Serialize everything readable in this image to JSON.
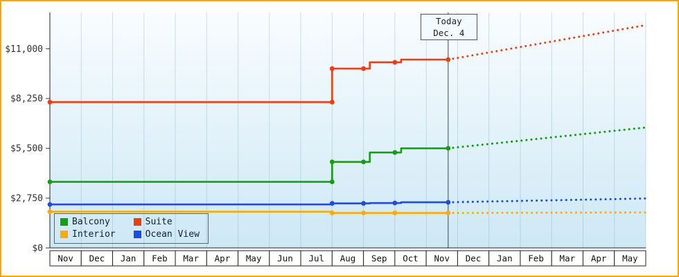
{
  "frame": {
    "border_color": "#ffa500"
  },
  "chart_data": {
    "type": "line",
    "title": "",
    "ylim": [
      0,
      13000
    ],
    "grid": "vertical-month-lines",
    "legend_position": "bottom-left",
    "y_axis": {
      "ticks": [
        {
          "label": "$0",
          "value": 0
        },
        {
          "label": "$2,750",
          "value": 2750
        },
        {
          "label": "$5,500",
          "value": 5500
        },
        {
          "label": "$8,250",
          "value": 8250
        },
        {
          "label": "$11,000",
          "value": 11000
        }
      ]
    },
    "x_axis": {
      "months": [
        "Nov",
        "Dec",
        "Jan",
        "Feb",
        "Mar",
        "Apr",
        "May",
        "Jun",
        "Jul",
        "Aug",
        "Sep",
        "Oct",
        "Nov",
        "Dec",
        "Jan",
        "Feb",
        "Mar",
        "Apr",
        "May"
      ]
    },
    "today": {
      "line1": "Today",
      "line2": "Dec. 4",
      "month_x": 12.7
    },
    "series": [
      {
        "name": "Interior",
        "color": "#ffaa00",
        "points": [
          [
            0,
            2000
          ],
          [
            9,
            2000
          ],
          [
            9,
            1930
          ],
          [
            12.7,
            1930
          ]
        ],
        "dots": [
          [
            0,
            2000
          ],
          [
            9,
            1930
          ],
          [
            10,
            1930
          ],
          [
            11,
            1930
          ],
          [
            12.7,
            1930
          ]
        ],
        "forecast": [
          [
            12.7,
            1930
          ],
          [
            19,
            1960
          ]
        ]
      },
      {
        "name": "Ocean View",
        "color": "#1e4be4",
        "points": [
          [
            0,
            2400
          ],
          [
            9,
            2400
          ],
          [
            9,
            2460
          ],
          [
            10.2,
            2460
          ],
          [
            10.2,
            2480
          ],
          [
            11.2,
            2480
          ],
          [
            11.2,
            2520
          ],
          [
            12.7,
            2520
          ]
        ],
        "dots": [
          [
            0,
            2400
          ],
          [
            9,
            2460
          ],
          [
            10,
            2460
          ],
          [
            11,
            2480
          ],
          [
            12.7,
            2520
          ]
        ],
        "forecast": [
          [
            12.7,
            2520
          ],
          [
            19,
            2730
          ]
        ]
      },
      {
        "name": "Balcony",
        "color": "#149e14",
        "points": [
          [
            0,
            3650
          ],
          [
            9,
            3650
          ],
          [
            9,
            4750
          ],
          [
            10.2,
            4750
          ],
          [
            10.2,
            5270
          ],
          [
            11.2,
            5270
          ],
          [
            11.2,
            5500
          ],
          [
            12.7,
            5500
          ]
        ],
        "dots": [
          [
            0,
            3650
          ],
          [
            9,
            3650
          ],
          [
            9,
            4750
          ],
          [
            10,
            4750
          ],
          [
            11,
            5270
          ],
          [
            12.7,
            5500
          ]
        ],
        "forecast": [
          [
            12.7,
            5500
          ],
          [
            19,
            6650
          ]
        ]
      },
      {
        "name": "Suite",
        "color": "#f23c0f",
        "points": [
          [
            0,
            8050
          ],
          [
            9,
            8050
          ],
          [
            9,
            9900
          ],
          [
            10.2,
            9900
          ],
          [
            10.2,
            10250
          ],
          [
            11.2,
            10250
          ],
          [
            11.2,
            10400
          ],
          [
            12.7,
            10400
          ]
        ],
        "dots": [
          [
            0,
            8050
          ],
          [
            9,
            8050
          ],
          [
            9,
            9900
          ],
          [
            10,
            9900
          ],
          [
            11,
            10250
          ],
          [
            12.7,
            10400
          ]
        ],
        "forecast": [
          [
            12.7,
            10400
          ],
          [
            19,
            12300
          ]
        ]
      }
    ],
    "legend": {
      "order": [
        "Balcony",
        "Suite",
        "Interior",
        "Ocean View"
      ]
    }
  }
}
